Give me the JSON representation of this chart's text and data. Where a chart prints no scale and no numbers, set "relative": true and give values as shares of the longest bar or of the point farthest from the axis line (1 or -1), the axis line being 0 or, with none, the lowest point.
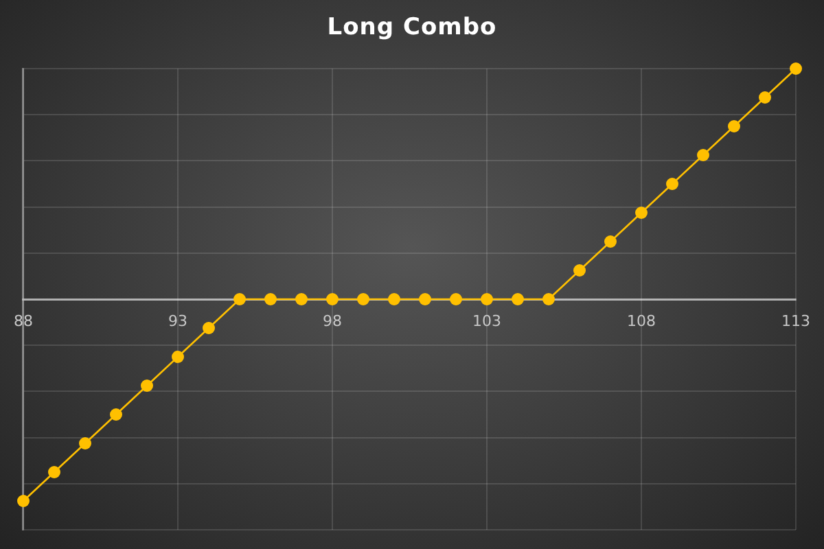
{
  "chart_data": {
    "type": "line",
    "title": "Long Combo",
    "x": [
      88,
      89,
      90,
      91,
      92,
      93,
      94,
      95,
      96,
      97,
      98,
      99,
      100,
      101,
      102,
      103,
      104,
      105,
      106,
      107,
      108,
      109,
      110,
      111,
      112,
      113
    ],
    "values": [
      -0.875,
      -0.75,
      -0.625,
      -0.5,
      -0.375,
      -0.25,
      -0.125,
      0,
      0,
      0,
      0,
      0,
      0,
      0,
      0,
      0,
      0,
      0,
      0.125,
      0.25,
      0.375,
      0.5,
      0.625,
      0.75,
      0.875,
      1
    ],
    "color": "#ffc000",
    "relative": true,
    "xlim": [
      88,
      113
    ],
    "xticks": [
      88,
      93,
      98,
      103,
      108,
      113
    ],
    "grid": true,
    "marker": "circle",
    "line_style": "solid"
  }
}
